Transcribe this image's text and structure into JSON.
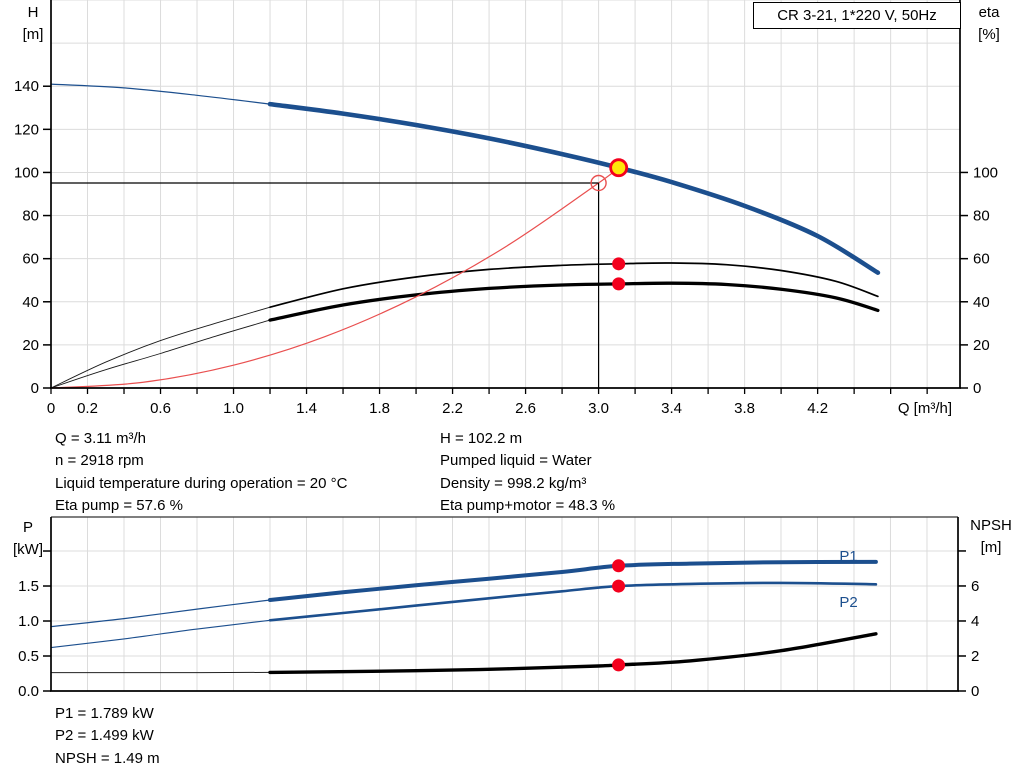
{
  "title_box": "CR 3-21, 1*220 V, 50Hz",
  "info_top": {
    "left": [
      "Q = 3.11 m³/h",
      "n = 2918 rpm",
      "Liquid temperature during operation = 20 °C",
      "Eta pump = 57.6 %"
    ],
    "right": [
      "H = 102.2 m",
      "Pumped liquid = Water",
      "Density = 998.2 kg/m³",
      "Eta pump+motor = 48.3 %"
    ]
  },
  "info_bottom": [
    "P1 = 1.789 kW",
    "P2 = 1.499 kW",
    "NPSH = 1.49 m"
  ],
  "colors": {
    "curve_blue": "#1c4f8e",
    "curve_black": "#000000",
    "thin_black": "#1a1a1a",
    "system_red": "#e94f4f",
    "marker_red": "#f3001d",
    "duty_yellow": "#ffe60a",
    "grid": "#dcdcdc",
    "axis": "#000000",
    "frame_gray": "#333333"
  },
  "chart_data": [
    {
      "id": "hq-eta-chart",
      "type": "line",
      "title": "CR 3-21, 1*220 V, 50Hz",
      "xlabel": "Q [m³/h]",
      "ylabel_left": "H [m]",
      "ylabel_right": "eta [%]",
      "xlim": [
        0,
        4.98
      ],
      "ylim_left": [
        0,
        180
      ],
      "ylim_right": [
        0,
        180
      ],
      "x_tick_step": 0.2,
      "x_grid_step": 0.2,
      "y_grid_step": 20,
      "x_tick_labels": [
        0,
        0.2,
        0.6,
        1.0,
        1.4,
        1.8,
        2.2,
        2.6,
        3.0,
        3.4,
        3.8,
        4.2
      ],
      "y_left_ticks": [
        0,
        20,
        40,
        60,
        80,
        100,
        120,
        140
      ],
      "y_right_ticks": [
        0,
        20,
        40,
        60,
        80,
        100
      ],
      "series": [
        {
          "name": "head-curve-extended",
          "axis": "left",
          "color": "#1c4f8e",
          "width": 1.2,
          "points": [
            [
              0,
              141
            ],
            [
              0.4,
              139.2
            ],
            [
              0.8,
              135.8
            ],
            [
              1.2,
              131.7
            ]
          ]
        },
        {
          "name": "head-curve",
          "axis": "left",
          "color": "#1c4f8e",
          "width": 4.6,
          "points": [
            [
              1.2,
              131.7
            ],
            [
              1.6,
              127.3
            ],
            [
              2.0,
              122.0
            ],
            [
              2.4,
              115.8
            ],
            [
              2.8,
              108.5
            ],
            [
              3.11,
              102.2
            ],
            [
              3.4,
              95.5
            ],
            [
              3.8,
              84.5
            ],
            [
              4.2,
              70.5
            ],
            [
              4.53,
              53.5
            ]
          ]
        },
        {
          "name": "eta-pump-extended",
          "axis": "right",
          "color": "#1a1a1a",
          "width": 0.9,
          "points": [
            [
              0,
              0
            ],
            [
              0.3,
              12
            ],
            [
              0.6,
              22
            ],
            [
              0.9,
              30
            ],
            [
              1.2,
              37.5
            ]
          ]
        },
        {
          "name": "eta-pump-curve",
          "axis": "right",
          "color": "#000000",
          "width": 1.7,
          "points": [
            [
              1.2,
              37.5
            ],
            [
              1.6,
              46
            ],
            [
              2.0,
              51.5
            ],
            [
              2.4,
              55
            ],
            [
              2.8,
              56.9
            ],
            [
              3.11,
              57.6
            ],
            [
              3.4,
              58
            ],
            [
              3.7,
              57.2
            ],
            [
              4.0,
              54.5
            ],
            [
              4.3,
              49.5
            ],
            [
              4.53,
              42.5
            ]
          ]
        },
        {
          "name": "eta-pump-motor-extended",
          "axis": "right",
          "color": "#1a1a1a",
          "width": 0.9,
          "points": [
            [
              0,
              0
            ],
            [
              0.3,
              8.5
            ],
            [
              0.6,
              16
            ],
            [
              0.9,
              24
            ],
            [
              1.2,
              31.5
            ]
          ]
        },
        {
          "name": "eta-pump-motor-curve",
          "axis": "right",
          "color": "#000000",
          "width": 3.3,
          "points": [
            [
              1.2,
              31.5
            ],
            [
              1.6,
              38.5
            ],
            [
              2.0,
              43.2
            ],
            [
              2.4,
              46.2
            ],
            [
              2.8,
              47.8
            ],
            [
              3.11,
              48.3
            ],
            [
              3.4,
              48.6
            ],
            [
              3.7,
              48
            ],
            [
              4.0,
              45.8
            ],
            [
              4.3,
              41.8
            ],
            [
              4.53,
              36
            ]
          ]
        },
        {
          "name": "system-curve",
          "axis": "left",
          "color": "#e94f4f",
          "width": 1.2,
          "points": [
            [
              0,
              0
            ],
            [
              0.5,
              2.6
            ],
            [
              1.0,
              10.6
            ],
            [
              1.5,
              23.8
            ],
            [
              2.0,
              42.3
            ],
            [
              2.5,
              66
            ],
            [
              3.0,
              95.1
            ],
            [
              3.11,
              102.2
            ]
          ]
        }
      ],
      "annotations": {
        "crosshair": {
          "q": 3.0,
          "h": 95.1
        },
        "markers": [
          {
            "name": "duty-point-marker",
            "kind": "duty-yellow",
            "axis": "left",
            "q": 3.11,
            "v": 102.2
          },
          {
            "name": "requested-duty-circle",
            "kind": "open-circle",
            "axis": "left",
            "q": 3.0,
            "v": 95.1
          },
          {
            "name": "eta-pump-dot",
            "kind": "dot",
            "axis": "right",
            "q": 3.11,
            "v": 57.6
          },
          {
            "name": "eta-pump-motor-dot",
            "kind": "dot",
            "axis": "right",
            "q": 3.11,
            "v": 48.3
          }
        ]
      }
    },
    {
      "id": "power-npsh-chart",
      "type": "line",
      "xlabel": "",
      "ylabel_left": "P [kW]",
      "ylabel_right": "NPSH [m]",
      "xlim": [
        0,
        4.97
      ],
      "ylim_left": [
        0,
        2.486
      ],
      "ylim_right": [
        0,
        9.94
      ],
      "x_grid_step": 0.2,
      "y_grid_step": 0.5,
      "x_tick_labels": [],
      "y_left_ticks": [
        0.0,
        0.5,
        1.0,
        1.5
      ],
      "y_left_unlabeled_ticks": [
        2.0
      ],
      "y_right_ticks": [
        0,
        2,
        4,
        6
      ],
      "y_right_unlabeled_ticks": [
        8
      ],
      "series": [
        {
          "name": "p1-curve-extended",
          "axis": "left",
          "color": "#1c4f8e",
          "width": 1.2,
          "points": [
            [
              0,
              0.92
            ],
            [
              0.4,
              1.035
            ],
            [
              0.8,
              1.17
            ],
            [
              1.2,
              1.3
            ]
          ]
        },
        {
          "name": "p1-curve",
          "axis": "left",
          "color": "#1c4f8e",
          "width": 4.0,
          "points": [
            [
              1.2,
              1.3
            ],
            [
              1.6,
              1.41
            ],
            [
              2.0,
              1.51
            ],
            [
              2.4,
              1.605
            ],
            [
              2.8,
              1.7
            ],
            [
              3.11,
              1.789
            ],
            [
              3.5,
              1.82
            ],
            [
              4.0,
              1.84
            ],
            [
              4.52,
              1.845
            ]
          ]
        },
        {
          "name": "p2-curve-extended",
          "axis": "left",
          "color": "#1c4f8e",
          "width": 1.1,
          "points": [
            [
              0,
              0.62
            ],
            [
              0.4,
              0.745
            ],
            [
              0.8,
              0.885
            ],
            [
              1.2,
              1.01
            ]
          ]
        },
        {
          "name": "p2-curve",
          "axis": "left",
          "color": "#1c4f8e",
          "width": 2.6,
          "points": [
            [
              1.2,
              1.01
            ],
            [
              1.6,
              1.115
            ],
            [
              2.0,
              1.22
            ],
            [
              2.4,
              1.325
            ],
            [
              2.8,
              1.425
            ],
            [
              3.11,
              1.499
            ],
            [
              3.5,
              1.53
            ],
            [
              4.0,
              1.545
            ],
            [
              4.52,
              1.525
            ]
          ]
        },
        {
          "name": "npsh-curve-extended",
          "axis": "right",
          "color": "#222222",
          "width": 1.0,
          "points": [
            [
              0,
              1.05
            ],
            [
              0.6,
              1.05
            ],
            [
              1.2,
              1.06
            ]
          ]
        },
        {
          "name": "npsh-curve",
          "axis": "right",
          "color": "#000000",
          "width": 3.4,
          "points": [
            [
              1.2,
              1.06
            ],
            [
              2.0,
              1.16
            ],
            [
              2.5,
              1.27
            ],
            [
              3.0,
              1.43
            ],
            [
              3.11,
              1.49
            ],
            [
              3.5,
              1.72
            ],
            [
              4.0,
              2.3
            ],
            [
              4.52,
              3.27
            ]
          ]
        }
      ],
      "inline_labels": [
        {
          "text": "P1",
          "axis": "left",
          "q": 4.37,
          "v": 1.93,
          "color": "#1c4f8e"
        },
        {
          "text": "P2",
          "axis": "left",
          "q": 4.37,
          "v": 1.27,
          "color": "#1c4f8e"
        }
      ],
      "annotations": {
        "markers": [
          {
            "name": "p1-dot",
            "kind": "dot",
            "axis": "left",
            "q": 3.11,
            "v": 1.789
          },
          {
            "name": "p2-dot",
            "kind": "dot",
            "axis": "left",
            "q": 3.11,
            "v": 1.499
          },
          {
            "name": "npsh-dot",
            "kind": "dot",
            "axis": "right",
            "q": 3.11,
            "v": 1.49
          }
        ]
      }
    }
  ]
}
